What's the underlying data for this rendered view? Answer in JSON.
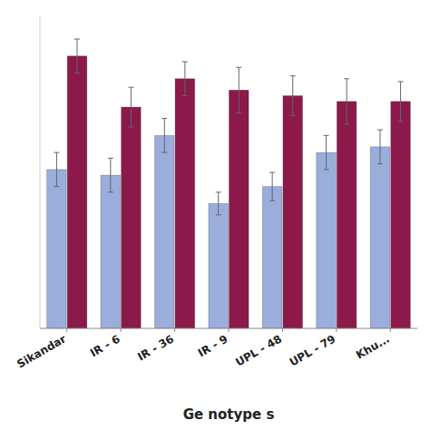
{
  "chart_data": {
    "type": "bar",
    "xlabel": "Ge notype s",
    "categories": [
      "Sikandar",
      "IR - 6",
      "IR - 36",
      "IR - 9",
      "UPL - 48",
      "UPL - 79",
      "Khu..."
    ],
    "series": [
      {
        "color": "#9aaddb",
        "values": [
          28,
          27,
          34,
          22,
          25,
          31,
          32
        ],
        "errors": [
          3.0,
          3.0,
          3.0,
          2.0,
          2.5,
          3.0,
          3.0
        ]
      },
      {
        "color": "#8b1a4a",
        "values": [
          48,
          39,
          44,
          42,
          41,
          40,
          40
        ],
        "errors": [
          3.0,
          3.5,
          3.0,
          4.0,
          3.5,
          4.0,
          3.5
        ]
      }
    ],
    "ylim": [
      0,
      55
    ],
    "tick_labels": "x",
    "grid": false
  }
}
